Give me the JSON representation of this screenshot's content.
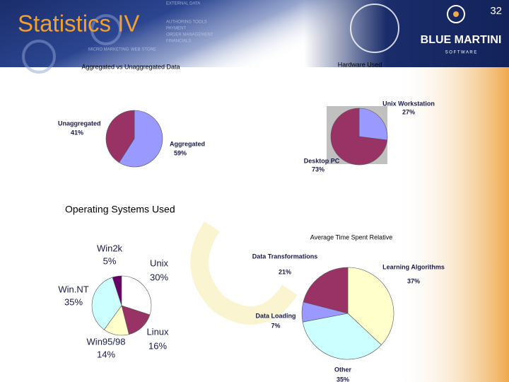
{
  "slide": {
    "title": "Statistics IV",
    "page_number": "32",
    "logo": "BLUE MARTINI",
    "logo_sub": "S O F T W A R E",
    "background_labels": [
      "EXTERNAL DATA",
      "AUTHORING TOOLS",
      "PAYMENT",
      "ORDER MANAGEMENT",
      "FINANCIALS",
      "MICRO MARKETING",
      "WEB STORE"
    ]
  },
  "chart_data": [
    {
      "type": "pie",
      "title": "Aggregated vs Unaggregated Data",
      "categories": [
        "Aggregated",
        "Unaggregated"
      ],
      "values": [
        59,
        41
      ],
      "value_labels": [
        "59%",
        "41%"
      ],
      "colors": [
        "#9999ff",
        "#993366"
      ]
    },
    {
      "type": "pie",
      "title": "Hardware Used",
      "categories": [
        "Unix Workstation",
        "Desktop PC"
      ],
      "values": [
        27,
        73
      ],
      "value_labels": [
        "27%",
        "73%"
      ],
      "colors": [
        "#9999ff",
        "#993366"
      ]
    },
    {
      "type": "pie",
      "title": "Operating Systems Used",
      "categories": [
        "Win2k",
        "Unix",
        "Linux",
        "Win95/98",
        "Win.NT"
      ],
      "values": [
        5,
        30,
        16,
        14,
        35
      ],
      "value_labels": [
        "5%",
        "30%",
        "16%",
        "14%",
        "35%"
      ],
      "colors": [
        "#660066",
        "#ffffff",
        "#993366",
        "#ffffcc",
        "#ccffff"
      ]
    },
    {
      "type": "pie",
      "title": "Average Time Spent Relative",
      "categories": [
        "Learning Algorithms",
        "Other",
        "Data Loading",
        "Data Transformations"
      ],
      "values": [
        37,
        35,
        7,
        21
      ],
      "value_labels": [
        "37%",
        "35%",
        "7%",
        "21%"
      ],
      "colors": [
        "#ffffcc",
        "#ccffff",
        "#9999ff",
        "#993366"
      ]
    }
  ]
}
